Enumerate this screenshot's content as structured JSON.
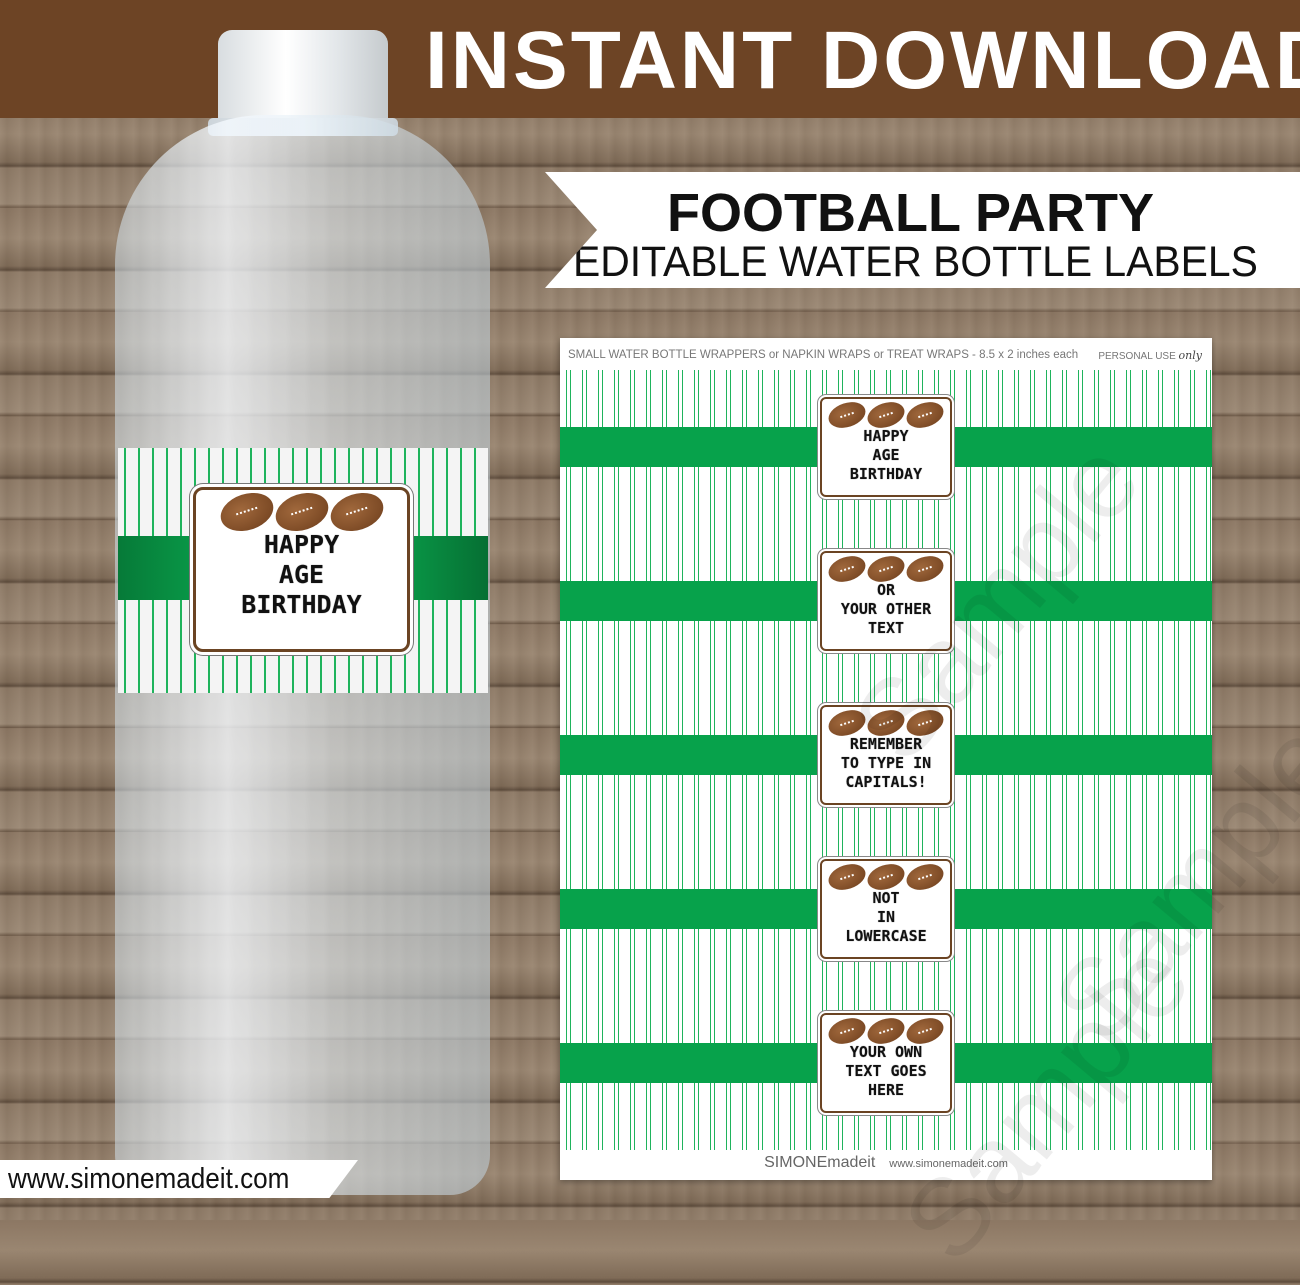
{
  "banner": {
    "title": "INSTANT DOWNLOAD"
  },
  "ribbon": {
    "line1": "FOOTBALL PARTY",
    "line2": "EDITABLE WATER BOTTLE LABELS"
  },
  "sheet": {
    "header": "SMALL WATER BOTTLE WRAPPERS or NAPKIN WRAPS or TREAT WRAPS - 8.5 x 2 inches each",
    "personal": "PERSONAL USE",
    "personal_script": "only",
    "watermark": "Sample",
    "labels": [
      {
        "lines": [
          "HAPPY",
          "AGE",
          "BIRTHDAY"
        ]
      },
      {
        "lines": [
          "OR",
          "YOUR OTHER",
          "TEXT"
        ]
      },
      {
        "lines": [
          "REMEMBER",
          "TO TYPE IN",
          "CAPITALS!"
        ]
      },
      {
        "lines": [
          "NOT",
          "IN",
          "LOWERCASE"
        ]
      },
      {
        "lines": [
          "YOUR OWN",
          "TEXT GOES",
          "HERE"
        ]
      }
    ],
    "footer_brand": "SIMONEmadeit",
    "footer_url": "www.simonemadeit.com"
  },
  "bottle_label": {
    "lines": [
      "HAPPY",
      "AGE",
      "BIRTHDAY"
    ]
  },
  "site_url": "www.simonemadeit.com",
  "colors": {
    "brown": "#6d4425",
    "green": "#07a24b",
    "stripe": "#1fb35c"
  }
}
